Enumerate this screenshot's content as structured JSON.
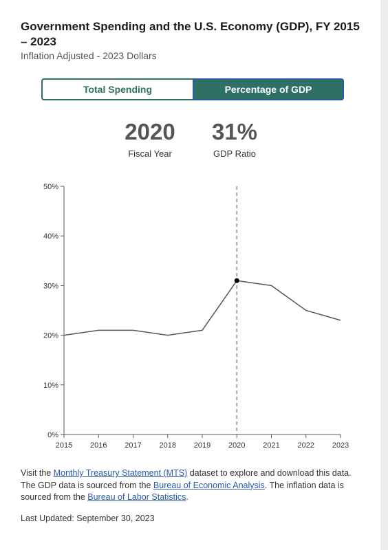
{
  "header": {
    "title": "Government Spending and the U.S. Economy (GDP), FY 2015 – 2023",
    "subtitle": "Inflation Adjusted - 2023 Dollars"
  },
  "toggle": {
    "total_label": "Total Spending",
    "gdp_label": "Percentage of GDP",
    "active": "Percentage of GDP"
  },
  "metrics": {
    "year_value": "2020",
    "year_label": "Fiscal Year",
    "ratio_value": "31%",
    "ratio_label": "GDP Ratio"
  },
  "chart_data": {
    "type": "line",
    "title": "",
    "xlabel": "",
    "ylabel": "",
    "x": [
      2015,
      2016,
      2017,
      2018,
      2019,
      2020,
      2021,
      2022,
      2023
    ],
    "series": [
      {
        "values": [
          20,
          21,
          21,
          20,
          21,
          31,
          30,
          25,
          23
        ]
      }
    ],
    "y_ticks": [
      "0%",
      "10%",
      "20%",
      "30%",
      "40%",
      "50%"
    ],
    "x_ticks": [
      "2015",
      "2016",
      "2017",
      "2018",
      "2019",
      "2020",
      "2021",
      "2022",
      "2023"
    ],
    "ylim": [
      0,
      50
    ],
    "xlim": [
      2015,
      2023
    ],
    "highlight_x": 2020,
    "grid": false,
    "line_color": "#555555"
  },
  "footer": {
    "p1": "Visit the ",
    "link_mts": "Monthly Treasury Statement (MTS)",
    "p2": " dataset to explore and download this data. The GDP data is sourced from the ",
    "link_bea": "Bureau of Economic Analysis",
    "p3": ". The inflation data is sourced from the ",
    "link_bls": "Bureau of Labor Statistics",
    "p4": ".",
    "updated": "Last Updated: September 30, 2023"
  }
}
